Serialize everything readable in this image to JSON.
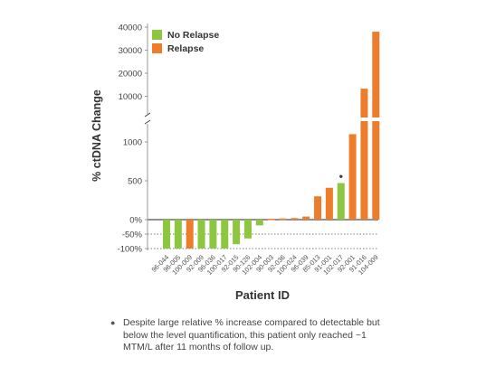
{
  "chart_data": {
    "type": "bar",
    "ylabel": "% ctDNA Change",
    "xlabel": "Patient ID",
    "legend": [
      {
        "name": "No Relapse",
        "color": "#8dc63f"
      },
      {
        "name": "Relapse",
        "color": "#ee7d2b"
      }
    ],
    "legend_placement": "top-left",
    "y_scale": "broken (three segments)",
    "y_segments": [
      {
        "range": [
          -100,
          0
        ],
        "ticks": [
          "-100%",
          "-50%",
          "0%"
        ]
      },
      {
        "range": [
          0,
          1250
        ],
        "ticks": [
          "500",
          "1000"
        ]
      },
      {
        "range": [
          0,
          40000
        ],
        "ticks": [
          "10000",
          "20000",
          "30000",
          "40000"
        ]
      }
    ],
    "categories": [
      "96-044",
      "96-005",
      "100-009",
      "92-009",
      "96-036",
      "100-017",
      "92-015",
      "90-126",
      "102-004",
      "90-003",
      "92-036",
      "100-024",
      "96-039",
      "85-013",
      "91-001",
      "102-017",
      "92-001",
      "91-016",
      "104-009"
    ],
    "values": [
      -100,
      -100,
      -100,
      -100,
      -100,
      -100,
      -85,
      -65,
      -20,
      12,
      15,
      20,
      40,
      300,
      410,
      470,
      1100,
      13300,
      38000
    ],
    "groups": [
      "No Relapse",
      "No Relapse",
      "Relapse",
      "No Relapse",
      "No Relapse",
      "No Relapse",
      "No Relapse",
      "No Relapse",
      "No Relapse",
      "Relapse",
      "Relapse",
      "Relapse",
      "Relapse",
      "Relapse",
      "Relapse",
      "No Relapse",
      "Relapse",
      "Relapse",
      "Relapse"
    ],
    "marker": {
      "category": "102-017",
      "symbol": "●"
    }
  },
  "footnote": {
    "bullet": "●",
    "text": "Despite large relative % increase compared to detectable but below the level quantification, this patient only reached ~1 MTM/L after 11 months of follow up."
  }
}
